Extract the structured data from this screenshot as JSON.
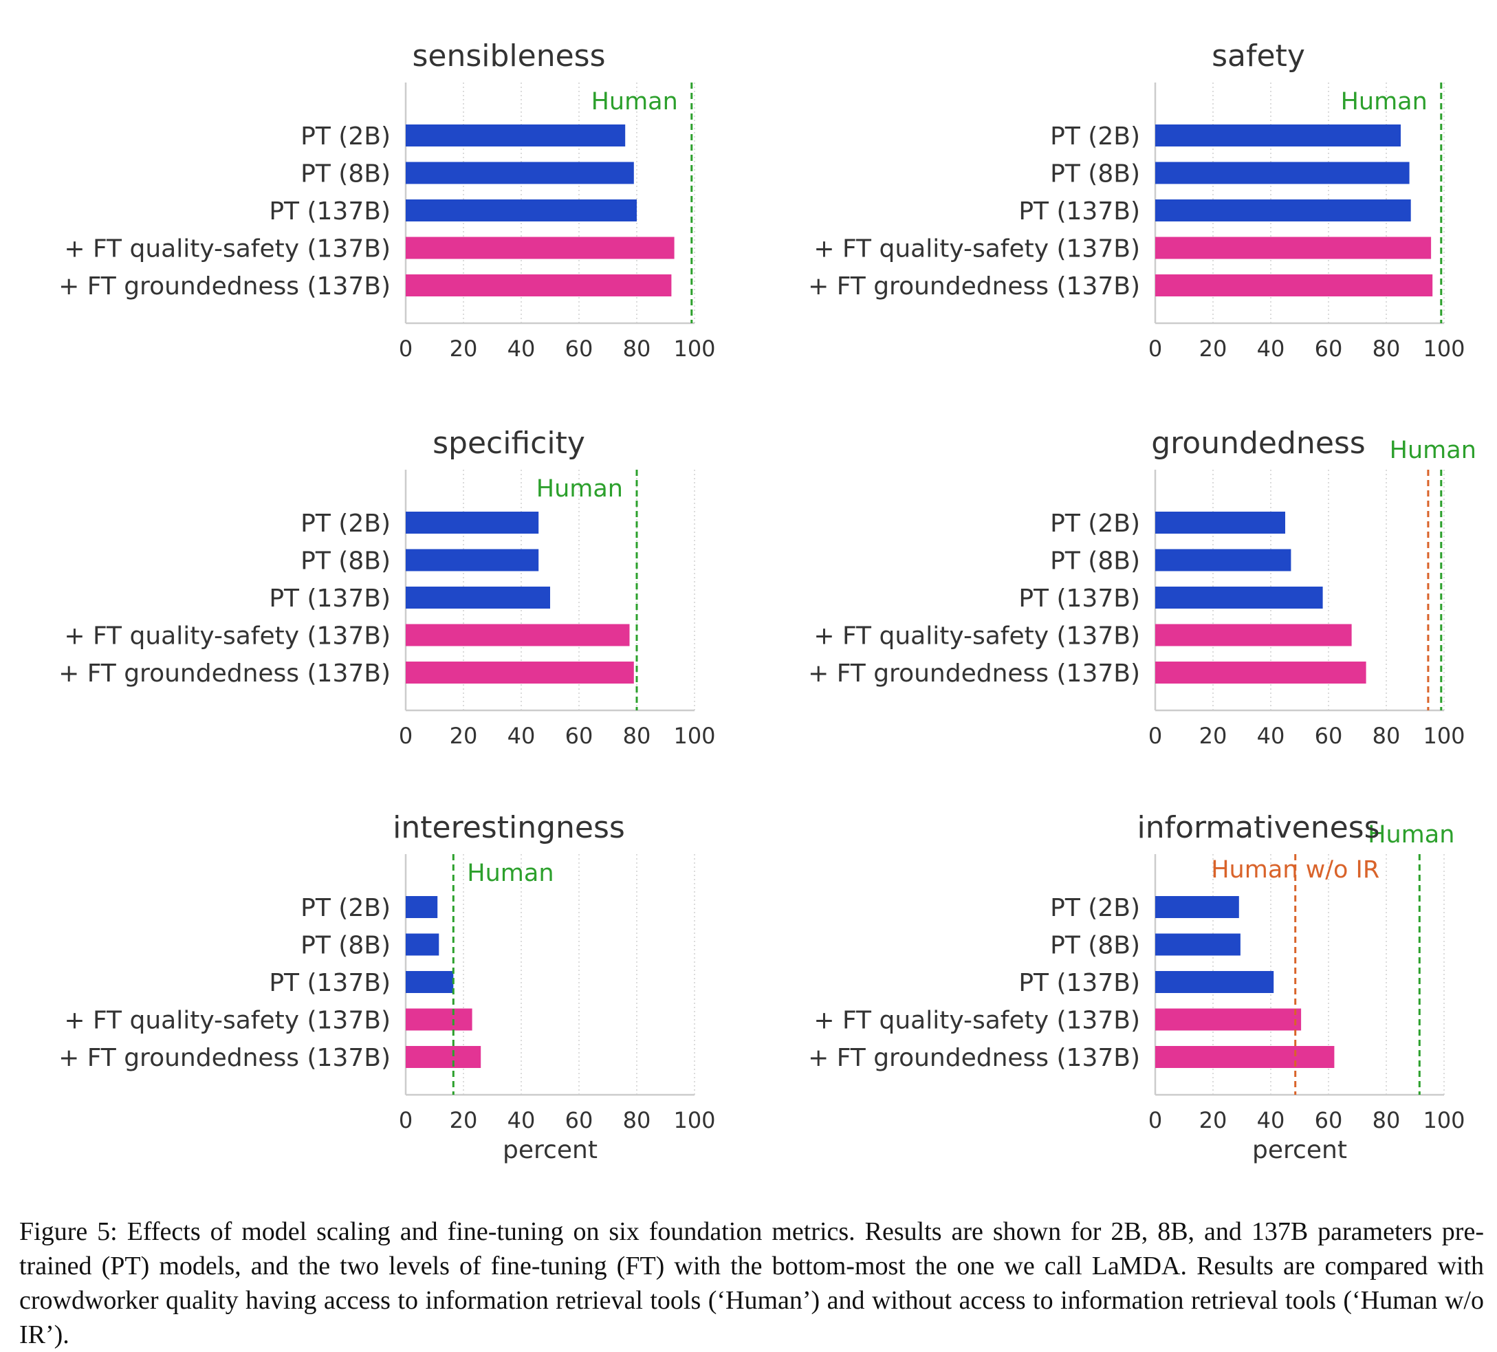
{
  "chart_data": [
    {
      "type": "bar",
      "orientation": "horizontal",
      "title": "sensibleness",
      "categories": [
        "PT (2B)",
        "PT (8B)",
        "PT (137B)",
        "+ FT quality-safety (137B)",
        "+ FT groundedness (137B)"
      ],
      "values": [
        76,
        79,
        80,
        93,
        92
      ],
      "bar_colors": [
        "#1f48c8",
        "#1f48c8",
        "#1f48c8",
        "#e33494",
        "#e33494"
      ],
      "xlim": [
        0,
        100
      ],
      "xticks": [
        "0",
        "20",
        "40",
        "60",
        "80",
        "100"
      ],
      "xlabel": "",
      "reference_lines": [
        {
          "label": "Human",
          "value": 99,
          "color": "#2ca02c"
        }
      ]
    },
    {
      "type": "bar",
      "orientation": "horizontal",
      "title": "safety",
      "categories": [
        "PT (2B)",
        "PT (8B)",
        "PT (137B)",
        "+ FT quality-safety (137B)",
        "+ FT groundedness (137B)"
      ],
      "values": [
        85,
        88,
        88.5,
        95.5,
        96
      ],
      "bar_colors": [
        "#1f48c8",
        "#1f48c8",
        "#1f48c8",
        "#e33494",
        "#e33494"
      ],
      "xlim": [
        0,
        100
      ],
      "xticks": [
        "0",
        "20",
        "40",
        "60",
        "80",
        "100"
      ],
      "xlabel": "",
      "reference_lines": [
        {
          "label": "Human",
          "value": 99,
          "color": "#2ca02c"
        }
      ]
    },
    {
      "type": "bar",
      "orientation": "horizontal",
      "title": "specificity",
      "categories": [
        "PT (2B)",
        "PT (8B)",
        "PT (137B)",
        "+ FT quality-safety (137B)",
        "+ FT groundedness (137B)"
      ],
      "values": [
        46,
        46,
        50,
        77.5,
        79
      ],
      "bar_colors": [
        "#1f48c8",
        "#1f48c8",
        "#1f48c8",
        "#e33494",
        "#e33494"
      ],
      "xlim": [
        0,
        100
      ],
      "xticks": [
        "0",
        "20",
        "40",
        "60",
        "80",
        "100"
      ],
      "xlabel": "",
      "reference_lines": [
        {
          "label": "Human",
          "value": 80,
          "color": "#2ca02c"
        }
      ]
    },
    {
      "type": "bar",
      "orientation": "horizontal",
      "title": "groundedness",
      "categories": [
        "PT (2B)",
        "PT (8B)",
        "PT (137B)",
        "+ FT quality-safety (137B)",
        "+ FT groundedness (137B)"
      ],
      "values": [
        45,
        47,
        58,
        68,
        73
      ],
      "bar_colors": [
        "#1f48c8",
        "#1f48c8",
        "#1f48c8",
        "#e33494",
        "#e33494"
      ],
      "xlim": [
        0,
        100
      ],
      "xticks": [
        "0",
        "20",
        "40",
        "60",
        "80",
        "100"
      ],
      "xlabel": "",
      "reference_lines": [
        {
          "label": "Human",
          "value": 99,
          "color": "#2ca02c"
        },
        {
          "label": "",
          "value": 94.5,
          "color": "#d9632a"
        }
      ]
    },
    {
      "type": "bar",
      "orientation": "horizontal",
      "title": "interestingness",
      "categories": [
        "PT (2B)",
        "PT (8B)",
        "PT (137B)",
        "+ FT quality-safety (137B)",
        "+ FT groundedness (137B)"
      ],
      "values": [
        11,
        11.5,
        16.5,
        23,
        26
      ],
      "bar_colors": [
        "#1f48c8",
        "#1f48c8",
        "#1f48c8",
        "#e33494",
        "#e33494"
      ],
      "xlim": [
        0,
        100
      ],
      "xticks": [
        "0",
        "20",
        "40",
        "60",
        "80",
        "100"
      ],
      "xlabel": "percent",
      "reference_lines": [
        {
          "label": "Human",
          "value": 16.5,
          "color": "#2ca02c"
        }
      ]
    },
    {
      "type": "bar",
      "orientation": "horizontal",
      "title": "informativeness",
      "categories": [
        "PT (2B)",
        "PT (8B)",
        "PT (137B)",
        "+ FT quality-safety (137B)",
        "+ FT groundedness (137B)"
      ],
      "values": [
        29,
        29.5,
        41,
        50.5,
        62
      ],
      "bar_colors": [
        "#1f48c8",
        "#1f48c8",
        "#1f48c8",
        "#e33494",
        "#e33494"
      ],
      "xlim": [
        0,
        100
      ],
      "xticks": [
        "0",
        "20",
        "40",
        "60",
        "80",
        "100"
      ],
      "xlabel": "percent",
      "reference_lines": [
        {
          "label": "Human",
          "value": 91.5,
          "color": "#2ca02c"
        },
        {
          "label": "Human w/o IR",
          "value": 48.5,
          "color": "#d9632a"
        }
      ]
    }
  ],
  "caption": "Figure 5: Effects of model scaling and fine-tuning on six foundation metrics. Results are shown for 2B, 8B, and 137B parameters pre-trained (PT) models, and the two levels of fine-tuning (FT) with the bottom-most the one we call LaMDA. Results are compared with crowdworker quality having access to information retrieval tools (‘Human’) and without access to information retrieval tools (‘Human w/o IR’)."
}
